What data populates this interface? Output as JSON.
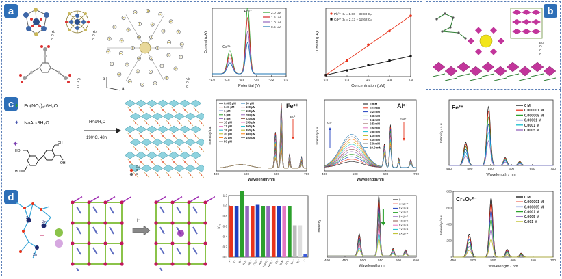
{
  "figure": {
    "panel_letters": [
      "a",
      "b",
      "c",
      "d"
    ],
    "colors": {
      "frame": "#5b7fb7",
      "letter_bg": "#2e6fb7"
    }
  },
  "panel_a": {
    "atom_legend_1": [
      "Yb",
      "O",
      "C"
    ],
    "atom_legend_2": [
      "Yb",
      "O",
      "C"
    ],
    "atom_legend_3": [
      "Yb",
      "O",
      "C"
    ],
    "atom_legend_4": [
      "Yb",
      "O",
      "C"
    ],
    "axis_b": "b",
    "axis_a": "a"
  },
  "panel_b": {
    "atom_legend": [
      "Eu",
      "O",
      "C",
      "N"
    ]
  },
  "panel_c": {
    "reagent_1": "Eu(NO₃)₃·6H₂O",
    "reagent_2": "NaAc·3H₂O",
    "condition_1": "HAc/H₂O",
    "condition_2": "190°C, 48h",
    "atom_legend": [
      "Eu",
      "O",
      "C"
    ]
  },
  "chart_data": [
    {
      "id": "a-dpv",
      "type": "line",
      "xlabel": "Potential (V)",
      "ylabel": "Current (μA)",
      "xlim": [
        -1.0,
        0.0
      ],
      "xticks": [
        "-1.0",
        "-0.8",
        "-0.6",
        "-0.4",
        "-0.2",
        "0.0"
      ],
      "annotations": [
        "Pb²⁺",
        "Cd²⁺"
      ],
      "series": [
        {
          "name": "2.0 μM",
          "color": "#2ca02c",
          "peakCd": 0.34,
          "peakPb": 0.98
        },
        {
          "name": "1.5 μM",
          "color": "#d62728",
          "peakCd": 0.28,
          "peakPb": 0.82
        },
        {
          "name": "1.0 μM",
          "color": "#9467bd",
          "peakCd": 0.22,
          "peakPb": 0.62
        },
        {
          "name": "0.5 μM",
          "color": "#1f77b4",
          "peakCd": 0.16,
          "peakPb": 0.46
        }
      ]
    },
    {
      "id": "a-calib",
      "type": "scatter",
      "xlabel": "Concentration (μM)",
      "ylabel": "Current (μA)",
      "xlim": [
        0.0,
        2.0
      ],
      "ylim": [
        0,
        90
      ],
      "xticks": [
        "0.0",
        "0.5",
        "1.0",
        "1.5",
        "2.0"
      ],
      "series": [
        {
          "name": "Pb²⁺ :Iₚ = 1.86 + 39.80 Cₚ",
          "color": "#e8341c",
          "x": [
            0.0,
            0.5,
            1.0,
            1.5,
            2.0
          ],
          "y": [
            2,
            21,
            42,
            60,
            80
          ]
        },
        {
          "name": "Cd²⁺ :Iₚ = 2.13 + 12.62 Cₚ",
          "color": "#111111",
          "x": [
            0.0,
            0.5,
            1.0,
            1.5,
            2.0
          ],
          "y": [
            2,
            8,
            15,
            21,
            27
          ]
        }
      ]
    },
    {
      "id": "b-fe",
      "type": "line",
      "title": "Fe³⁺",
      "xlabel": "Wavelength / nm",
      "ylabel": "Intensity / a.u.",
      "xlim": [
        450,
        700
      ],
      "xticks": [
        "450",
        "500",
        "550",
        "600",
        "650",
        "700"
      ],
      "series": [
        {
          "name": "0 M",
          "color": "#111111",
          "scale": 1.0
        },
        {
          "name": "0.000001 M",
          "color": "#e8341c",
          "scale": 0.92
        },
        {
          "name": "0.000005 M",
          "color": "#2ca02c",
          "scale": 0.82
        },
        {
          "name": "0.00001 M",
          "color": "#1f3fbf",
          "scale": 0.7
        },
        {
          "name": "0.0001 M",
          "color": "#17becf",
          "scale": 0.56
        },
        {
          "name": "0.0005 M",
          "color": "#9467bd",
          "scale": 0.42
        }
      ]
    },
    {
      "id": "b-cr",
      "type": "line",
      "title": "Cr₂O₇²⁻",
      "xlabel": "Wavelength / nm",
      "ylabel": "Intensity / a.u.",
      "xlim": [
        450,
        700
      ],
      "ylim": [
        0,
        800
      ],
      "xticks": [
        "450",
        "500",
        "550",
        "600",
        "650",
        "700"
      ],
      "yticks": [
        "0",
        "200",
        "400",
        "600",
        "800"
      ],
      "series": [
        {
          "name": "0 M",
          "color": "#111111",
          "scale": 1.0
        },
        {
          "name": "0.000001 M",
          "color": "#e8341c",
          "scale": 0.9
        },
        {
          "name": "0.000005 M",
          "color": "#1f3fbf",
          "scale": 0.78
        },
        {
          "name": "0.0001 M",
          "color": "#2ca02c",
          "scale": 0.64
        },
        {
          "name": "0.0005 M",
          "color": "#9467bd",
          "scale": 0.46
        },
        {
          "name": "0.001 M",
          "color": "#bcbd22",
          "scale": 0.3
        }
      ]
    },
    {
      "id": "c-fe",
      "type": "line",
      "title": "Fe³⁺",
      "xlabel": "Wavelength/nm",
      "ylabel": "Intensity/a.u.",
      "xlim": [
        350,
        720
      ],
      "xticks": [
        "400",
        "500",
        "600",
        "700"
      ],
      "annotations": [
        "Eu³⁺"
      ],
      "series": [
        {
          "name": "0.005 μM",
          "color": "#111111"
        },
        {
          "name": "0.01 μM",
          "color": "#e8341c"
        },
        {
          "name": "1 μM",
          "color": "#1f3fbf"
        },
        {
          "name": "5 μM",
          "color": "#2ca02c"
        },
        {
          "name": "8 μM",
          "color": "#9467bd"
        },
        {
          "name": "10 μM",
          "color": "#8c564b"
        },
        {
          "name": "13 μM",
          "color": "#e377c2"
        },
        {
          "name": "15 μM",
          "color": "#17becf"
        },
        {
          "name": "20 μM",
          "color": "#bcbd22"
        },
        {
          "name": "30 μM",
          "color": "#ff7f0e"
        },
        {
          "name": "50 μM",
          "color": "#7f7f7f"
        },
        {
          "name": "80 μM",
          "color": "#1f77b4"
        },
        {
          "name": "100 μM",
          "color": "#d62728"
        },
        {
          "name": "150 μM",
          "color": "#2ca02c"
        },
        {
          "name": "200 μM",
          "color": "#9467bd"
        },
        {
          "name": "220 μM",
          "color": "#8c564b"
        },
        {
          "name": "250 μM",
          "color": "#e377c2"
        },
        {
          "name": "300 μM",
          "color": "#17becf"
        },
        {
          "name": "350 μM",
          "color": "#bcbd22"
        },
        {
          "name": "400 μM",
          "color": "#ff7f0e"
        },
        {
          "name": "450 μM",
          "color": "#7f7f7f"
        }
      ]
    },
    {
      "id": "c-al",
      "type": "line",
      "title": "Al³⁺",
      "xlabel": "Wavelength/nm",
      "ylabel": "Intensity/a.u.",
      "xlim": [
        350,
        720
      ],
      "xticks": [
        "400",
        "500",
        "600",
        "700"
      ],
      "annotations": [
        "Al³⁺",
        "Eu³⁺"
      ],
      "series": [
        {
          "name": "0 mM",
          "color": "#111111"
        },
        {
          "name": "0.1 mM",
          "color": "#e8341c"
        },
        {
          "name": "0.2 mM",
          "color": "#1f3fbf"
        },
        {
          "name": "0.3 mM",
          "color": "#2ca02c"
        },
        {
          "name": "0.4 mM",
          "color": "#9467bd"
        },
        {
          "name": "0.5 mM",
          "color": "#8c564b"
        },
        {
          "name": "0.6 mM",
          "color": "#e377c2"
        },
        {
          "name": "0.8 mM",
          "color": "#17becf"
        },
        {
          "name": "1.0 mM",
          "color": "#bcbd22"
        },
        {
          "name": "2.0 mM",
          "color": "#ff7f0e"
        },
        {
          "name": "5.0 mM",
          "color": "#7f7f7f"
        },
        {
          "name": "10.0 mM",
          "color": "#1f77b4"
        }
      ]
    },
    {
      "id": "d-bar",
      "type": "bar",
      "ylabel": "I/I₀",
      "ylim": [
        0,
        1.2
      ],
      "yticks": [
        "0.0",
        "0.2",
        "0.4",
        "0.6",
        "0.8",
        "1.0",
        "1.2"
      ],
      "categories": [
        "F⁻",
        "Cl⁻",
        "Br⁻",
        "NO₃⁻",
        "SO₄²⁻",
        "CO₃²⁻",
        "AcO⁻",
        "H₂PO₄⁻",
        "HPO₄²⁻",
        "CN⁻",
        "SCN⁻",
        "ClO₄⁻",
        "BF₄⁻",
        "N₃⁻",
        "I⁻"
      ],
      "values": [
        1.0,
        1.0,
        1.3,
        1.0,
        1.0,
        1.02,
        1.0,
        1.0,
        1.0,
        1.0,
        1.0,
        1.0,
        0.62,
        0.62,
        0.06
      ],
      "colors": [
        "#e8341c",
        "#1f3fbf",
        "#2ca02c",
        "#9467bd",
        "#e8341c",
        "#1f3fbf",
        "#2ca02c",
        "#9467bd",
        "#e8341c",
        "#1f3fbf",
        "#e377c2",
        "#2ca02c",
        "#bbbbbb",
        "#dddddd",
        "#3b5bdb"
      ]
    },
    {
      "id": "d-pl",
      "type": "line",
      "xlabel": "Wavelength/nm",
      "ylabel": "Intensity",
      "xlim": [
        400,
        650
      ],
      "xticks": [
        "400",
        "450",
        "500",
        "550",
        "600",
        "650"
      ],
      "series": [
        {
          "name": "0",
          "color": "#111111"
        },
        {
          "name": "1×10⁻⁸",
          "color": "#e8341c"
        },
        {
          "name": "5×10⁻⁸",
          "color": "#1f3fbf"
        },
        {
          "name": "1×10⁻⁷",
          "color": "#2ca02c"
        },
        {
          "name": "5×10⁻⁷",
          "color": "#9467bd"
        },
        {
          "name": "1×10⁻⁶",
          "color": "#8c564b"
        },
        {
          "name": "5×10⁻⁶",
          "color": "#e377c2"
        },
        {
          "name": "1×10⁻⁵",
          "color": "#17becf"
        },
        {
          "name": "5×10⁻⁵",
          "color": "#bcbd22"
        }
      ]
    }
  ]
}
